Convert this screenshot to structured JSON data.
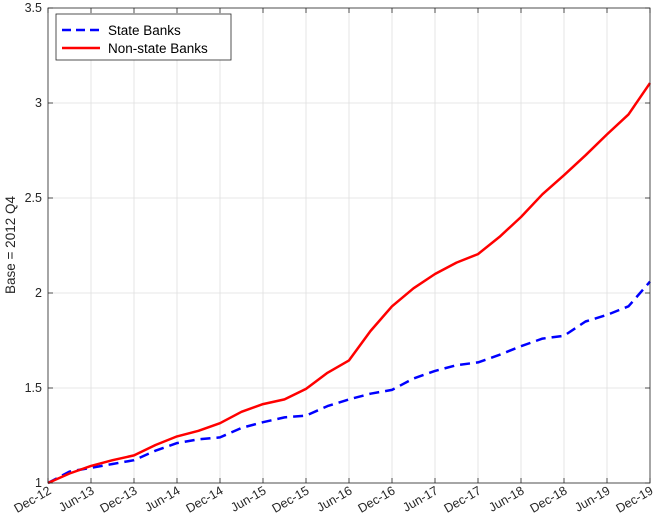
{
  "chart_data": {
    "type": "line",
    "title": "",
    "xlabel": "",
    "ylabel": "Base = 2012 Q4",
    "ylim": [
      1,
      3.5
    ],
    "yticks": [
      "1",
      "1.5",
      "2",
      "2.5",
      "3",
      "3.5"
    ],
    "xtick_labels": [
      "Dec-12",
      "Jun-13",
      "Dec-13",
      "Jun-14",
      "Dec-14",
      "Jun-15",
      "Dec-15",
      "Jun-16",
      "Dec-16",
      "Jun-17",
      "Dec-17",
      "Jun-18",
      "Dec-18",
      "Jun-19",
      "Dec-19"
    ],
    "x": [
      "2012Q4",
      "2013Q1",
      "2013Q2",
      "2013Q3",
      "2013Q4",
      "2014Q1",
      "2014Q2",
      "2014Q3",
      "2014Q4",
      "2015Q1",
      "2015Q2",
      "2015Q3",
      "2015Q4",
      "2016Q1",
      "2016Q2",
      "2016Q3",
      "2016Q4",
      "2017Q1",
      "2017Q2",
      "2017Q3",
      "2017Q4",
      "2018Q1",
      "2018Q2",
      "2018Q3",
      "2018Q4",
      "2019Q1",
      "2019Q2",
      "2019Q3",
      "2019Q4"
    ],
    "grid": true,
    "legend_position": "top-left",
    "series": [
      {
        "name": "State Banks",
        "color": "#0000ff",
        "style": "dashed",
        "values": [
          1.0,
          1.06,
          1.08,
          1.1,
          1.12,
          1.17,
          1.21,
          1.23,
          1.24,
          1.29,
          1.32,
          1.345,
          1.355,
          1.405,
          1.44,
          1.47,
          1.49,
          1.55,
          1.59,
          1.62,
          1.635,
          1.675,
          1.72,
          1.76,
          1.775,
          1.85,
          1.885,
          1.93,
          2.06
        ]
      },
      {
        "name": "Non-state Banks",
        "color": "#ff0000",
        "style": "solid",
        "values": [
          1.0,
          1.05,
          1.09,
          1.12,
          1.145,
          1.2,
          1.245,
          1.275,
          1.315,
          1.375,
          1.415,
          1.44,
          1.495,
          1.58,
          1.645,
          1.8,
          1.93,
          2.025,
          2.1,
          2.16,
          2.205,
          2.295,
          2.4,
          2.52,
          2.62,
          2.725,
          2.835,
          2.94,
          3.105
        ]
      }
    ]
  }
}
